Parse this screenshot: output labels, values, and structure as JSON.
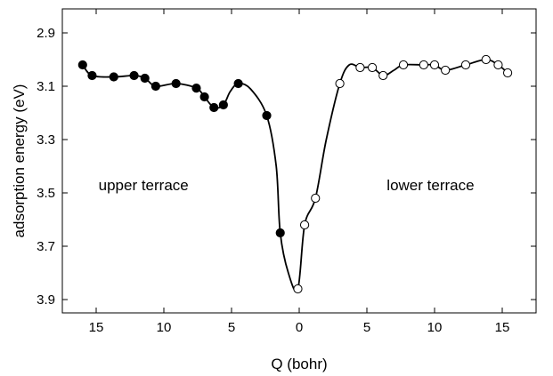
{
  "chart_data": {
    "type": "scatter",
    "xlabel": "Q  (bohr)",
    "ylabel": "adsorption energy  (eV)",
    "x_axis": {
      "tick_values": [
        -15,
        -10,
        -5,
        0,
        5,
        10,
        15
      ],
      "tick_labels": [
        "15",
        "10",
        "5",
        "0",
        "5",
        "10",
        "15"
      ],
      "lim": [
        -17.5,
        17.5
      ]
    },
    "y_axis": {
      "inverted": true,
      "tick_values": [
        2.9,
        3.1,
        3.3,
        3.5,
        3.7,
        3.9
      ],
      "tick_labels": [
        "2.9",
        "3.1",
        "3.3",
        "3.5",
        "3.7",
        "3.9"
      ],
      "lim": [
        2.81,
        3.95
      ]
    },
    "annotations": [
      {
        "text": "upper terrace",
        "x": -11.5,
        "y": 3.49
      },
      {
        "text": "lower terrace",
        "x": 9.7,
        "y": 3.49
      }
    ],
    "series": [
      {
        "marker": "filled-circle",
        "points": [
          [
            -16.0,
            3.02
          ],
          [
            -15.3,
            3.06
          ],
          [
            -13.7,
            3.065
          ],
          [
            -12.2,
            3.06
          ],
          [
            -11.4,
            3.07
          ],
          [
            -10.6,
            3.1
          ],
          [
            -9.1,
            3.09
          ],
          [
            -7.6,
            3.107
          ],
          [
            -7.0,
            3.14
          ],
          [
            -6.3,
            3.18
          ],
          [
            -5.6,
            3.17
          ],
          [
            -4.5,
            3.09
          ],
          [
            -2.4,
            3.21
          ],
          [
            -1.4,
            3.65
          ]
        ]
      },
      {
        "marker": "open-circle",
        "points": [
          [
            -0.1,
            3.86
          ],
          [
            0.4,
            3.62
          ],
          [
            1.2,
            3.52
          ],
          [
            3.0,
            3.09
          ],
          [
            4.5,
            3.03
          ],
          [
            5.4,
            3.03
          ],
          [
            6.2,
            3.06
          ],
          [
            7.7,
            3.02
          ],
          [
            9.2,
            3.02
          ],
          [
            10.0,
            3.02
          ],
          [
            10.8,
            3.04
          ],
          [
            12.3,
            3.02
          ],
          [
            13.8,
            3.0
          ],
          [
            14.7,
            3.02
          ],
          [
            15.4,
            3.05
          ]
        ]
      }
    ],
    "curve": [
      [
        -16.0,
        3.02
      ],
      [
        -15.3,
        3.06
      ],
      [
        -13.7,
        3.065
      ],
      [
        -12.2,
        3.06
      ],
      [
        -11.4,
        3.07
      ],
      [
        -10.6,
        3.1
      ],
      [
        -9.1,
        3.09
      ],
      [
        -7.6,
        3.107
      ],
      [
        -7.0,
        3.14
      ],
      [
        -6.3,
        3.18
      ],
      [
        -5.6,
        3.17
      ],
      [
        -5.1,
        3.12
      ],
      [
        -4.5,
        3.09
      ],
      [
        -3.6,
        3.11
      ],
      [
        -2.4,
        3.21
      ],
      [
        -1.7,
        3.4
      ],
      [
        -1.4,
        3.65
      ],
      [
        -0.8,
        3.8
      ],
      [
        -0.1,
        3.86
      ],
      [
        0.4,
        3.62
      ],
      [
        1.2,
        3.52
      ],
      [
        2.0,
        3.3
      ],
      [
        3.0,
        3.09
      ],
      [
        3.7,
        3.02
      ],
      [
        4.5,
        3.03
      ],
      [
        5.4,
        3.03
      ],
      [
        6.2,
        3.06
      ],
      [
        7.0,
        3.04
      ],
      [
        7.7,
        3.02
      ],
      [
        9.2,
        3.02
      ],
      [
        10.0,
        3.02
      ],
      [
        10.8,
        3.04
      ],
      [
        12.3,
        3.02
      ],
      [
        13.8,
        3.0
      ],
      [
        14.7,
        3.02
      ],
      [
        15.4,
        3.05
      ]
    ]
  }
}
